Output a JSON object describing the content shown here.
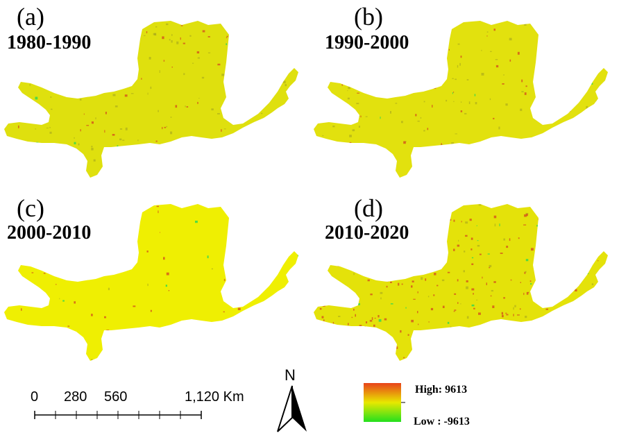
{
  "panels": [
    {
      "label": "(a)",
      "period": "1980-1990"
    },
    {
      "label": "(b)",
      "period": "1990-2000"
    },
    {
      "label": "(c)",
      "period": "2000-2010"
    },
    {
      "label": "(d)",
      "period": "2010-2020"
    }
  ],
  "scale_bar": {
    "ticks": [
      "0",
      "280",
      "560",
      "1,120 Km"
    ]
  },
  "north_arrow": {
    "letter": "N"
  },
  "legend": {
    "high_label": "High: 9613",
    "low_label": "Low : -9613",
    "colors": {
      "high": "#e8421a",
      "mid": "#e8e800",
      "low": "#22e01e"
    }
  },
  "colors": {
    "region_fill": "#e4e20c",
    "region_fill_c": "#f0f000",
    "red_speck": "#d4531c",
    "green_speck": "#3fd94a"
  }
}
